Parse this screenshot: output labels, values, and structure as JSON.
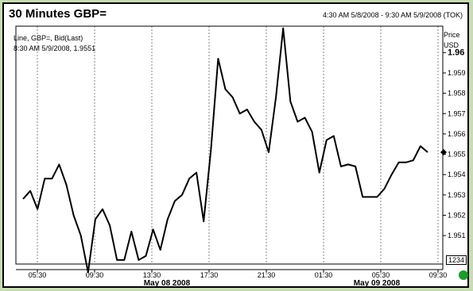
{
  "header": {
    "title": "30 Minutes GBP=",
    "range": "4:30 AM 5/8/2008 - 9:30 AM 5/9/2008 (TOK)"
  },
  "info": {
    "line1": "Line, GBP=, Bid(Last)",
    "line2": "8:30 AM 5/9/2008, 1.9551"
  },
  "yaxis": {
    "unit_top": "Price",
    "unit_bottom": "USD"
  },
  "badge": "1234",
  "colors": {
    "background": "#c8dcb4",
    "line": "#000000",
    "status": "#1e9b2c"
  },
  "chart_data": {
    "type": "line",
    "series": [
      {
        "values": [
          1.9528,
          1.9532,
          1.9523,
          1.9538,
          1.9538,
          1.9545,
          1.9535,
          1.952,
          1.951,
          1.9492,
          1.9518,
          1.9523,
          1.9515,
          1.9498,
          1.9498,
          1.9512,
          1.9498,
          1.95,
          1.9513,
          1.9503,
          1.9518,
          1.9527,
          1.953,
          1.9538,
          1.9541,
          1.9517,
          1.9552,
          1.9597,
          1.9582,
          1.9578,
          1.957,
          1.9572,
          1.9566,
          1.9562,
          1.9551,
          1.9578,
          1.9612,
          1.9576,
          1.9566,
          1.9568,
          1.9561,
          1.9541,
          1.9557,
          1.9559,
          1.9544,
          1.9545,
          1.9544,
          1.9529,
          1.9529,
          1.9529,
          1.9533,
          1.954,
          1.9546,
          1.9546,
          1.9547,
          1.9554,
          1.9551
        ]
      }
    ],
    "x_ticks": [
      "05:30",
      "09:30",
      "13:30",
      "17:30",
      "21:30",
      "01:30",
      "05:30",
      "09:30"
    ],
    "x_date_labels": [
      "May 08 2008",
      "May 09 2008"
    ],
    "y_ticks": [
      "1.96",
      "1.959",
      "1.958",
      "1.957",
      "1.956",
      "1.955",
      "1.954",
      "1.953",
      "1.952",
      "1.951"
    ],
    "ylim": [
      1.9496,
      1.9613
    ],
    "last_value_marker": 1.9551,
    "grid": true
  }
}
